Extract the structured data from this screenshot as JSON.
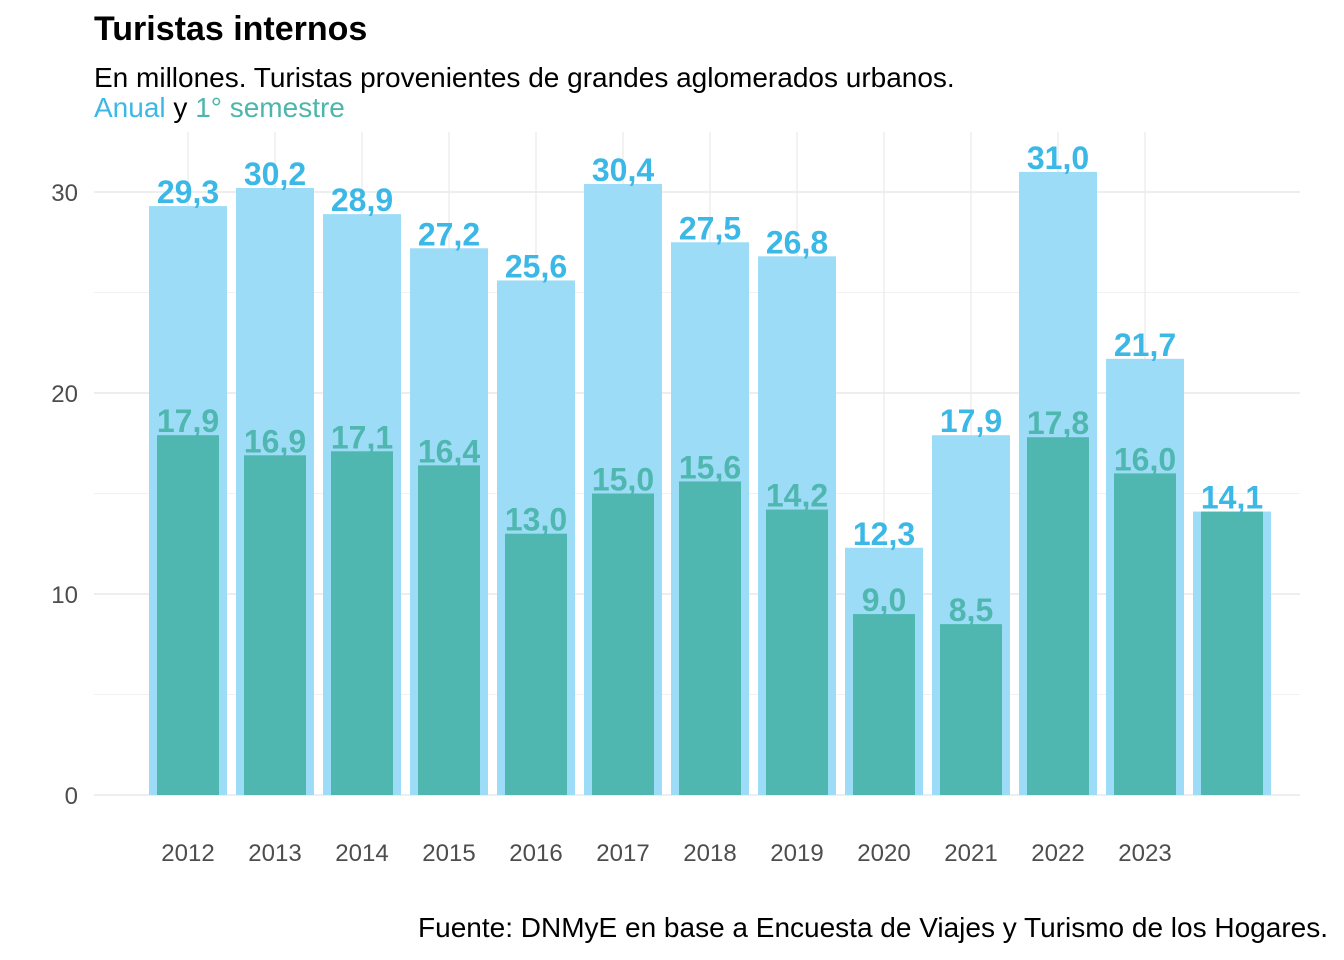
{
  "chart_data": {
    "type": "bar",
    "title": "Turistas internos",
    "subtitle": "En millones. Turistas provenientes de grandes aglomerados urbanos.",
    "legend": {
      "annual_label": "Anual",
      "separator": "y",
      "semester_label": "1° semestre",
      "placement": "below-subtitle"
    },
    "caption": "Fuente: DNMyE en base a Encuesta de Viajes y Turismo de los Hogares.",
    "categories": [
      "2012",
      "2013",
      "2014",
      "2015",
      "2016",
      "2017",
      "2018",
      "2019",
      "2020",
      "2021",
      "2022",
      "2023",
      ""
    ],
    "series": [
      {
        "name": "Anual",
        "color": "#9ddcf6",
        "label_color": "#3cb8e6",
        "values": [
          29.3,
          30.2,
          28.9,
          27.2,
          25.6,
          30.4,
          27.5,
          26.8,
          12.3,
          17.9,
          31.0,
          21.7,
          null
        ],
        "labels": [
          "29,3",
          "30,2",
          "28,9",
          "27,2",
          "25,6",
          "30,4",
          "27,5",
          "26,8",
          "12,3",
          "17,9",
          "31,0",
          "21,7",
          ""
        ]
      },
      {
        "name": "1° semestre",
        "color": "#4fb7b0",
        "label_color": "#4fb7b0",
        "values": [
          17.9,
          16.9,
          17.1,
          16.4,
          13.0,
          15.0,
          15.6,
          14.2,
          9.0,
          8.5,
          17.8,
          16.0,
          14.1
        ],
        "labels": [
          "17,9",
          "16,9",
          "17,1",
          "16,4",
          "13,0",
          "15,0",
          "15,6",
          "14,2",
          "9,0",
          "8,5",
          "17,8",
          "16,0",
          "14,1"
        ]
      }
    ],
    "y_ticks": [
      "0",
      "10",
      "20",
      "30"
    ],
    "ylim": [
      0,
      32.5
    ],
    "grid": true
  }
}
